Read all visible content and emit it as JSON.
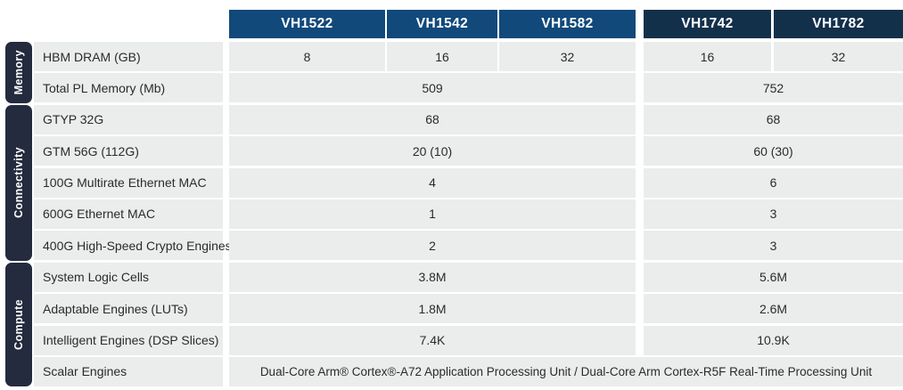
{
  "colors": {
    "header_blue": "#11497B",
    "header_navy": "#13304B",
    "tab_navy": "#242B3E",
    "row_bg": "#EBECEC",
    "cell_text": "#2B2B2B",
    "header_text": "#FFFFFF"
  },
  "chart_data": {
    "type": "table",
    "columns": [
      "VH1522",
      "VH1542",
      "VH1582",
      "VH1742",
      "VH1782"
    ],
    "column_group_split": "columns VH1522-VH1582 form left group, VH1742-VH1782 form right group; most rows show one merged value per group",
    "row_groups": [
      {
        "group": "Memory",
        "rows": [
          {
            "label": "HBM DRAM (GB)",
            "values": [
              "8",
              "16",
              "32",
              "16",
              "32"
            ]
          },
          {
            "label": "Total PL Memory (Mb)",
            "values": [
              "509",
              "509",
              "509",
              "752",
              "752"
            ]
          }
        ]
      },
      {
        "group": "Connectivity",
        "rows": [
          {
            "label": "GTYP 32G",
            "values": [
              "68",
              "68",
              "68",
              "68",
              "68"
            ]
          },
          {
            "label": "GTM 56G (112G)",
            "values": [
              "20 (10)",
              "20 (10)",
              "20 (10)",
              "60 (30)",
              "60 (30)"
            ]
          },
          {
            "label": "100G Multirate Ethernet MAC",
            "values": [
              "4",
              "4",
              "4",
              "6",
              "6"
            ]
          },
          {
            "label": "600G Ethernet MAC",
            "values": [
              "1",
              "1",
              "1",
              "3",
              "3"
            ]
          },
          {
            "label": "400G High-Speed Crypto Engines",
            "values": [
              "2",
              "2",
              "2",
              "3",
              "3"
            ]
          }
        ]
      },
      {
        "group": "Compute",
        "rows": [
          {
            "label": "System Logic Cells",
            "values": [
              "3.8M",
              "3.8M",
              "3.8M",
              "5.6M",
              "5.6M"
            ]
          },
          {
            "label": "Adaptable Engines (LUTs)",
            "values": [
              "1.8M",
              "1.8M",
              "1.8M",
              "2.6M",
              "2.6M"
            ]
          },
          {
            "label": "Intelligent Engines (DSP Slices)",
            "values": [
              "7.4K",
              "7.4K",
              "7.4K",
              "10.9K",
              "10.9K"
            ]
          },
          {
            "label": "Scalar Engines",
            "values": [
              "Dual-Core Arm® Cortex®-A72 Application Processing Unit  /  Dual-Core Arm Cortex-R5F Real-Time Processing Unit"
            ]
          }
        ]
      }
    ]
  }
}
